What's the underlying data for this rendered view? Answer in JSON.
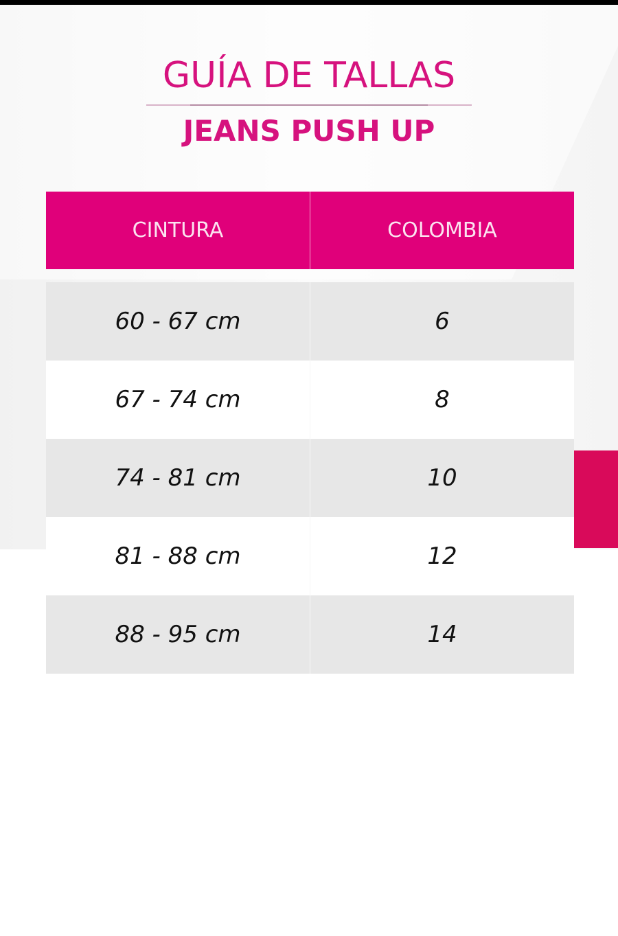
{
  "title": "GUÍA DE TALLAS",
  "subtitle": "JEANS PUSH UP",
  "colors": {
    "brand_pink": "#e0007a",
    "accent": "#d90a5a",
    "row_alt": "#e7e7e7"
  },
  "table": {
    "headers": [
      "CINTURA",
      "COLOMBIA"
    ],
    "rows": [
      {
        "cintura": "60 - 67 cm",
        "colombia": "6"
      },
      {
        "cintura": "67 - 74 cm",
        "colombia": "8"
      },
      {
        "cintura": "74 - 81 cm",
        "colombia": "10"
      },
      {
        "cintura": "81 - 88 cm",
        "colombia": "12"
      },
      {
        "cintura": "88 - 95 cm",
        "colombia": "14"
      }
    ]
  }
}
